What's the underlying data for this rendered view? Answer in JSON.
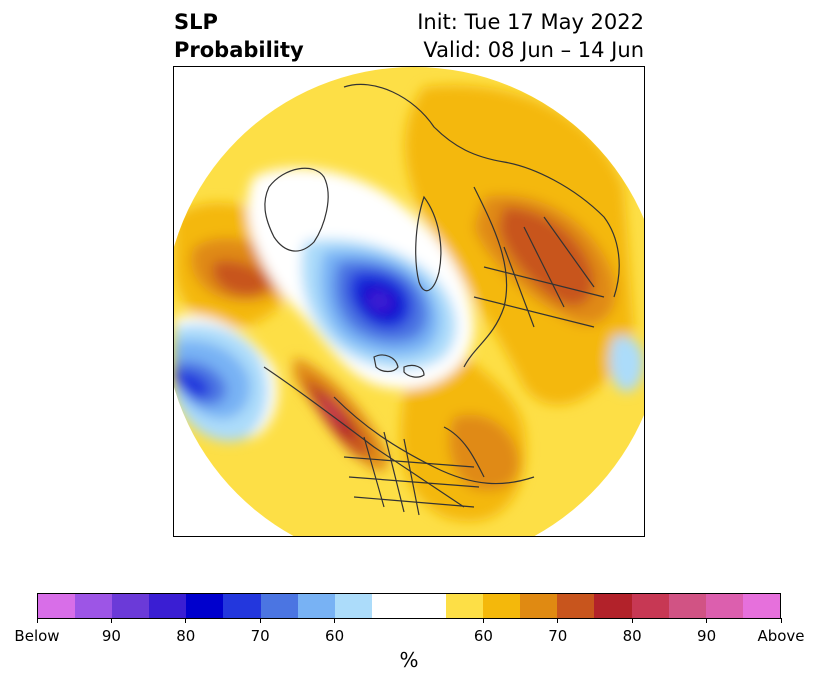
{
  "title": {
    "left_line1": "SLP",
    "left_line2": "Probability",
    "right_line1": "Init: Tue 17 May 2022",
    "right_line2": "Valid: 08 Jun – 14 Jun"
  },
  "map": {
    "projection": "north-polar-stereographic",
    "features": [
      "coastlines",
      "country-borders",
      "state-borders",
      "probability-contours"
    ]
  },
  "colorbar": {
    "unit": "%",
    "colors": [
      "#d86ee8",
      "#9d55e6",
      "#6b3ad8",
      "#3a1ed3",
      "#0000cd",
      "#2337dd",
      "#4b75e2",
      "#78b2f4",
      "#acdcfa",
      "#ffffff",
      "#ffffff",
      "#fddf46",
      "#f4b80b",
      "#e08a12",
      "#c8551d",
      "#b2222a",
      "#c73854",
      "#d15384",
      "#dc5fae",
      "#e670dc"
    ],
    "tick_labels": [
      "Below",
      "90",
      "80",
      "70",
      "60",
      "60",
      "70",
      "80",
      "90",
      "Above"
    ]
  }
}
